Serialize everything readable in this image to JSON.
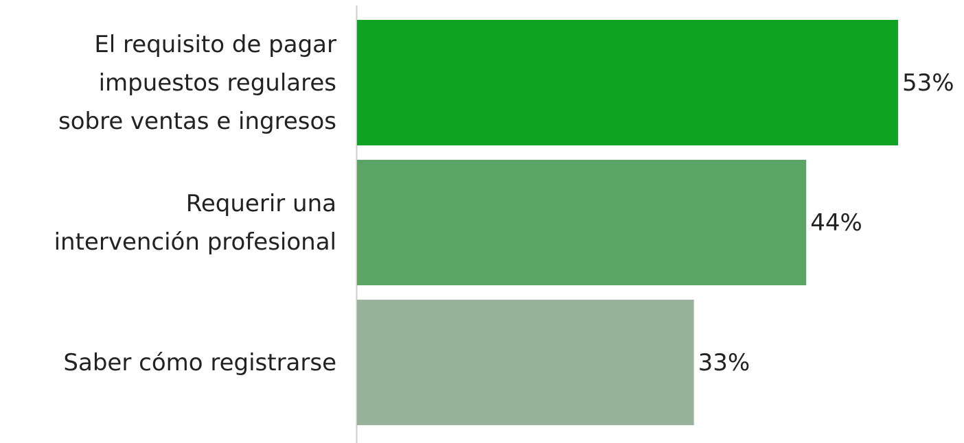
{
  "chart_data": {
    "type": "barh",
    "categories": [
      "El requisito de pagar\nimpuestos regulares\nsobre ventas e ingresos",
      "Requerir una\nintervención profesional",
      "Saber cómo registrarse"
    ],
    "values": [
      53,
      44,
      33
    ],
    "value_labels": [
      "53%",
      "44%",
      "33%"
    ],
    "colors": [
      "#10a222",
      "#5ca465",
      "#98b29b"
    ]
  }
}
